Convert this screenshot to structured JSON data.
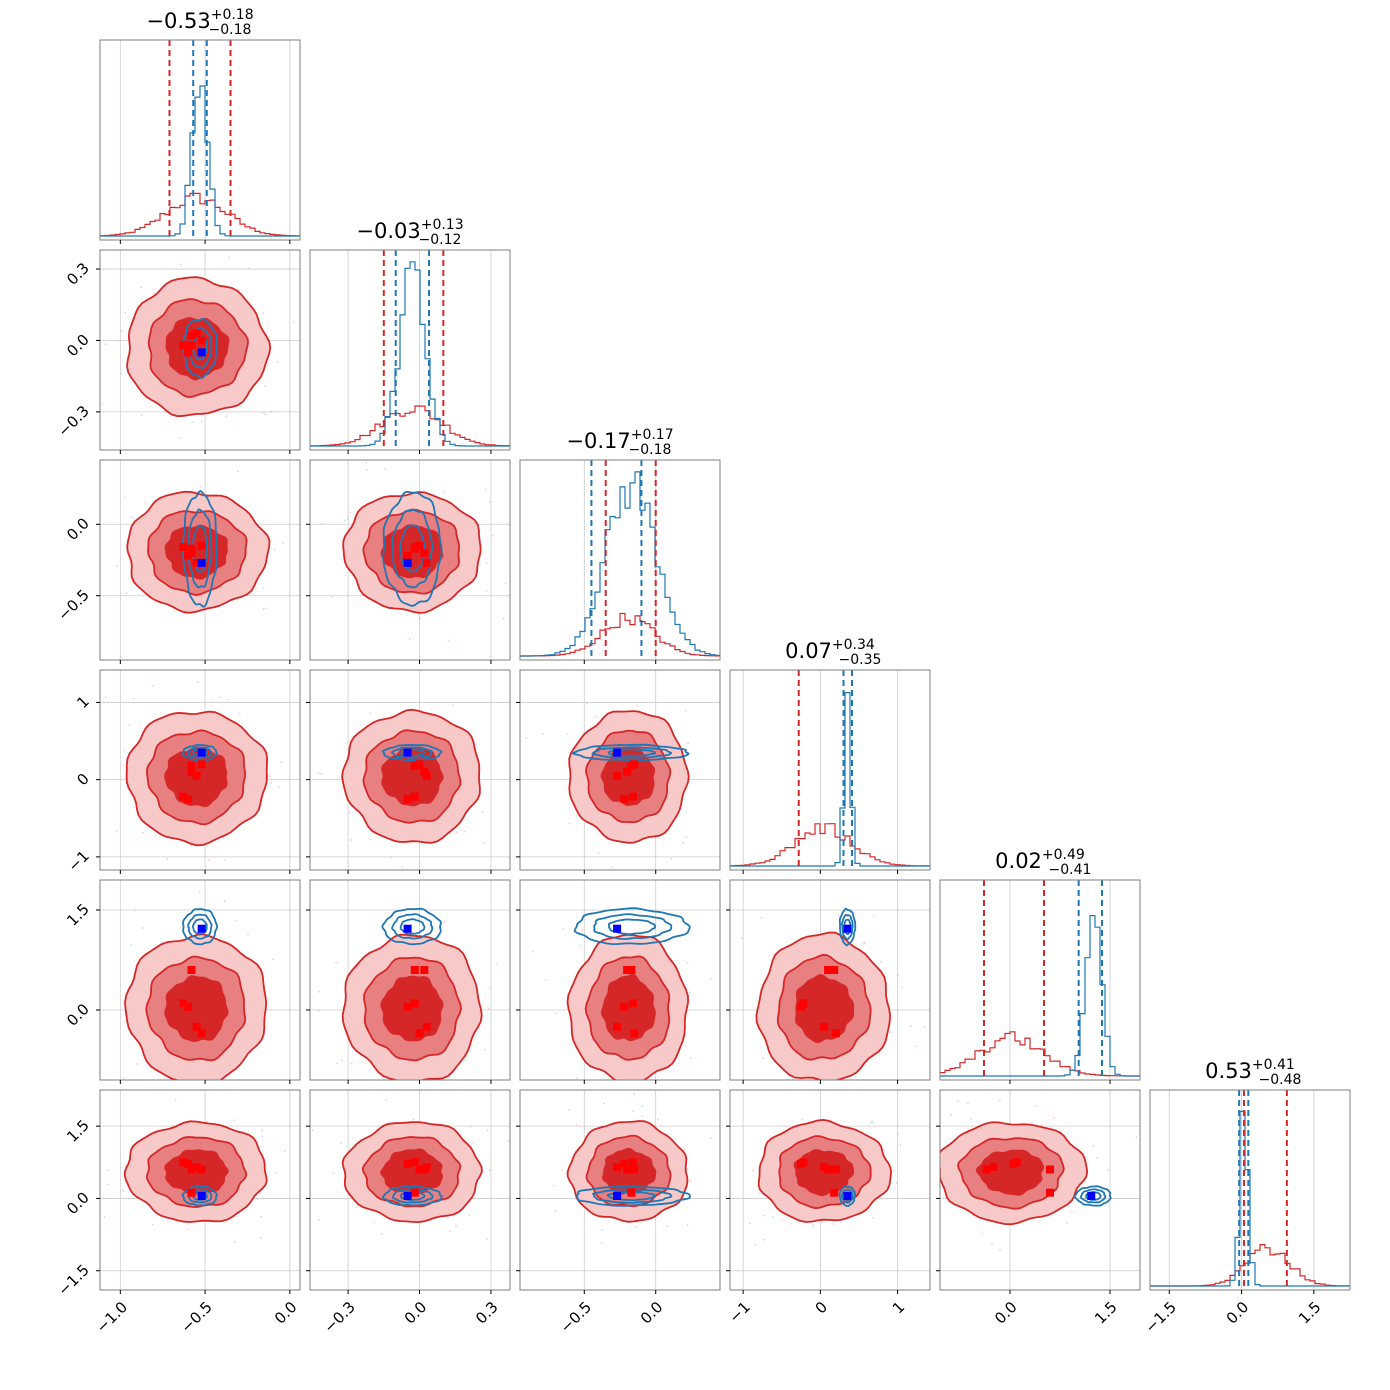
{
  "chart_data": {
    "type": "corner",
    "n_params": 6,
    "colors": {
      "red": "#d62728",
      "red_mid": "#e87f80",
      "red_light": "#f7c9c9",
      "blue": "#1f77b4",
      "blue_marker": "#0000ff",
      "red_marker": "#ff0000",
      "grid": "#cccccc",
      "frame": "#7f7f7f"
    },
    "titles": [
      {
        "value": "−0.53",
        "plus": "+0.18",
        "minus": "−0.18"
      },
      {
        "value": "−0.03",
        "plus": "+0.13",
        "minus": "−0.12"
      },
      {
        "value": "−0.17",
        "plus": "+0.17",
        "minus": "−0.18"
      },
      {
        "value": "0.07",
        "plus": "+0.34",
        "minus": "−0.35"
      },
      {
        "value": "0.02",
        "plus": "+0.49",
        "minus": "−0.41"
      },
      {
        "value": "0.53",
        "plus": "+0.41",
        "minus": "−0.48"
      }
    ],
    "ranges": [
      [
        -1.12,
        0.06
      ],
      [
        -0.46,
        0.38
      ],
      [
        -0.95,
        0.45
      ],
      [
        -1.17,
        1.42
      ],
      [
        -1.05,
        1.95
      ],
      [
        -1.9,
        2.25
      ]
    ],
    "ticks": [
      {
        "values": [
          -1.0,
          -0.5,
          0.0
        ],
        "labels": [
          "−1.0",
          "−0.5",
          "0.0"
        ]
      },
      {
        "values": [
          -0.3,
          0.0,
          0.3
        ],
        "labels": [
          "−0.3",
          "0.0",
          "0.3"
        ]
      },
      {
        "values": [
          -0.5,
          0.0
        ],
        "labels": [
          "−0.5",
          "0.0"
        ]
      },
      {
        "values": [
          -1,
          0,
          1
        ],
        "labels": [
          "−1",
          "0",
          "1"
        ]
      },
      {
        "values": [
          0.0,
          1.5
        ],
        "labels": [
          "0.0",
          "1.5"
        ]
      },
      {
        "values": [
          -1.5,
          0.0,
          1.5
        ],
        "labels": [
          "−1.5",
          "0.0",
          "1.5"
        ]
      }
    ],
    "red_posterior": {
      "center": [
        -0.55,
        -0.03,
        -0.19,
        0.04,
        0.02,
        0.55
      ],
      "sigma": [
        0.18,
        0.125,
        0.18,
        0.37,
        0.48,
        0.45
      ],
      "quantiles": [
        [
          -0.71,
          -0.35
        ],
        [
          -0.15,
          0.1
        ],
        [
          -0.35,
          0.0
        ],
        [
          -0.28,
          0.41
        ],
        [
          -0.39,
          0.51
        ],
        [
          0.05,
          0.94
        ]
      ]
    },
    "blue_posterior": {
      "center": [
        -0.53,
        -0.03,
        -0.17,
        0.35,
        1.25,
        0.05
      ],
      "sigma": [
        0.045,
        0.055,
        0.18,
        0.045,
        0.12,
        0.09
      ],
      "quantiles": [
        [
          -0.57,
          -0.49
        ],
        [
          -0.1,
          0.04
        ],
        [
          -0.45,
          -0.1
        ],
        [
          0.3,
          0.41
        ],
        [
          1.03,
          1.38
        ],
        [
          -0.05,
          0.14
        ]
      ]
    },
    "blue_marker": [
      -0.52,
      -0.05,
      -0.27,
      0.35,
      1.22,
      0.05
    ],
    "red_markers": [
      [
        -0.63,
        -0.02,
        -0.16,
        -0.22,
        0.1,
        0.75
      ],
      [
        -0.58,
        0.02,
        -0.2,
        0.1,
        0.6,
        0.6
      ],
      [
        -0.52,
        0.0,
        -0.15,
        0.2,
        -0.35,
        0.6
      ],
      [
        -0.6,
        -0.05,
        -0.22,
        -0.25,
        0.05,
        0.72
      ],
      [
        -0.55,
        0.03,
        -0.27,
        0.05,
        -0.25,
        0.65
      ],
      [
        -0.58,
        -0.02,
        -0.17,
        0.18,
        0.6,
        0.12
      ]
    ],
    "contour_levels_sigma": [
      1.0,
      1.6,
      2.3
    ]
  }
}
